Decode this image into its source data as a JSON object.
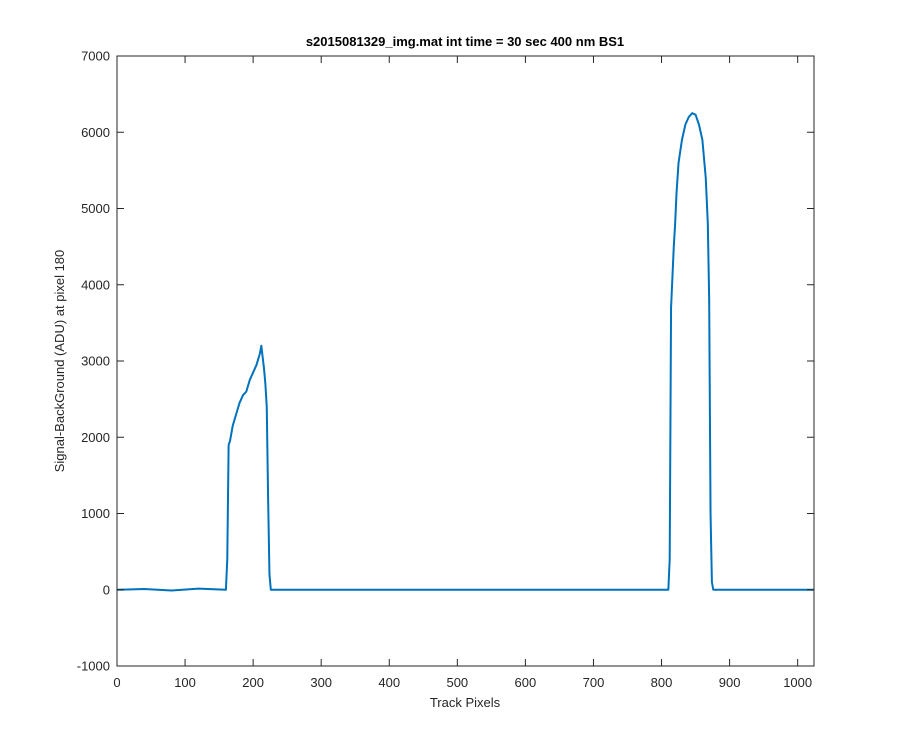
{
  "chart_data": {
    "type": "line",
    "title": "s2015081329_img.mat int time = 30 sec  400 nm BS1",
    "xlabel": "Track Pixels",
    "ylabel": "Signal-BackGround (ADU) at pixel 180",
    "xlim": [
      0,
      1024
    ],
    "ylim": [
      -1000,
      7000
    ],
    "xticks": [
      0,
      100,
      200,
      300,
      400,
      500,
      600,
      700,
      800,
      900,
      1000
    ],
    "yticks": [
      -1000,
      0,
      1000,
      2000,
      3000,
      4000,
      5000,
      6000,
      7000
    ],
    "grid": false,
    "line_color": "#0072BD",
    "series": [
      {
        "x": [
          0,
          40,
          80,
          120,
          160,
          162,
          164,
          166,
          168,
          170,
          175,
          180,
          185,
          190,
          195,
          200,
          205,
          210,
          212,
          214,
          216,
          218,
          220,
          222,
          224,
          226,
          228,
          232,
          300,
          400,
          500,
          600,
          700,
          800,
          810,
          812,
          814,
          816,
          818,
          820,
          822,
          825,
          830,
          835,
          840,
          845,
          850,
          855,
          860,
          865,
          868,
          870,
          872,
          874,
          876,
          880,
          900,
          1000,
          1024
        ],
        "y": [
          0,
          10,
          -10,
          15,
          0,
          400,
          1900,
          1950,
          2050,
          2150,
          2300,
          2450,
          2550,
          2600,
          2750,
          2850,
          2950,
          3100,
          3200,
          3050,
          2900,
          2700,
          2400,
          1200,
          200,
          0,
          0,
          0,
          0,
          0,
          0,
          0,
          0,
          0,
          0,
          400,
          3700,
          4100,
          4500,
          4800,
          5200,
          5600,
          5900,
          6100,
          6200,
          6250,
          6230,
          6100,
          5900,
          5400,
          4800,
          3800,
          1000,
          100,
          0,
          0,
          0,
          0,
          0
        ]
      }
    ]
  }
}
